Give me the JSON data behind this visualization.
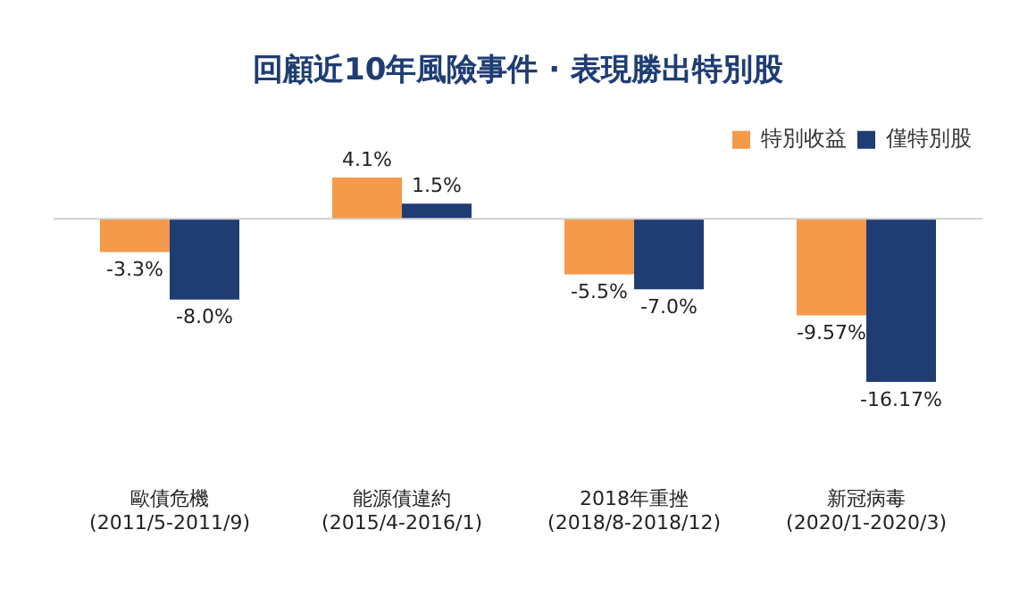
{
  "chart_data": {
    "type": "bar",
    "title": "回顧近10年風險事件 · 表現勝出特別股",
    "categories": [
      "歐債危機\n(2011/5-2011/9)",
      "能源債違約\n(2015/4-2016/1)",
      "2018年重挫\n(2018/8-2018/12)",
      "新冠病毒\n(2020/1-2020/3)"
    ],
    "series": [
      {
        "name": "特別收益",
        "color": "#f5994a",
        "values": [
          -3.3,
          4.1,
          -5.5,
          -9.57
        ],
        "value_labels": [
          "-3.3%",
          "4.1%",
          "-5.5%",
          "-9.57%"
        ]
      },
      {
        "name": "僅特別股",
        "color": "#1f3d73",
        "values": [
          -8.0,
          1.5,
          -7.0,
          -16.17
        ],
        "value_labels": [
          "-8.0%",
          "1.5%",
          "-7.0%",
          "-16.17%"
        ]
      }
    ],
    "legend": "top right",
    "grid": false
  }
}
